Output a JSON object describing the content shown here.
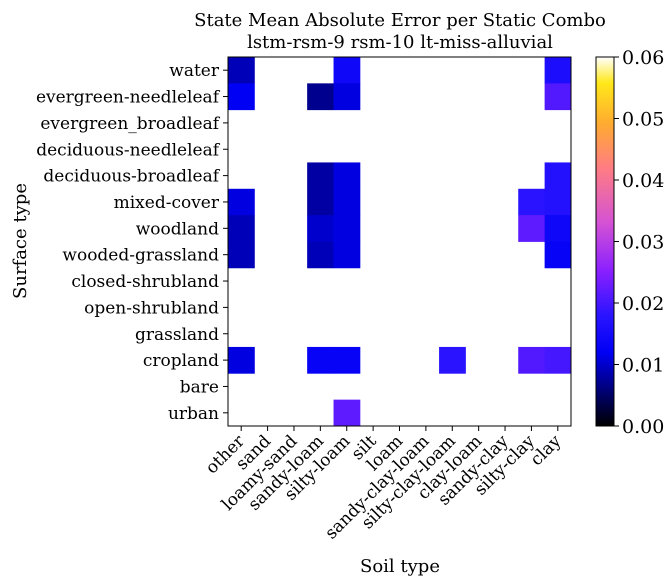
{
  "chart_data": {
    "type": "heatmap",
    "title": "State Mean Absolute Error per Static Combo",
    "subtitle": "lstm-rsm-9 rsm-10 lt-miss-alluvial",
    "xlabel": "Soil type",
    "ylabel": "Surface type",
    "x_categories": [
      "other",
      "sand",
      "loamy-sand",
      "sandy-loam",
      "silty-loam",
      "silt",
      "loam",
      "sandy-clay-loam",
      "silty-clay-loam",
      "clay-loam",
      "sandy-clay",
      "silty-clay",
      "clay"
    ],
    "y_categories": [
      "water",
      "evergreen-needleleaf",
      "evergreen_broadleaf",
      "deciduous-needleleaf",
      "deciduous-broadleaf",
      "mixed-cover",
      "woodland",
      "wooded-grassland",
      "closed-shrubland",
      "open-shrubland",
      "grassland",
      "cropland",
      "bare",
      "urban"
    ],
    "values": [
      [
        0.009,
        null,
        null,
        null,
        0.014,
        null,
        null,
        null,
        null,
        null,
        null,
        null,
        0.016
      ],
      [
        0.012,
        null,
        null,
        0.007,
        0.011,
        null,
        null,
        null,
        null,
        null,
        null,
        null,
        0.021
      ],
      [
        null,
        null,
        null,
        null,
        null,
        null,
        null,
        null,
        null,
        null,
        null,
        null,
        null
      ],
      [
        null,
        null,
        null,
        null,
        null,
        null,
        null,
        null,
        null,
        null,
        null,
        null,
        null
      ],
      [
        null,
        null,
        null,
        0.008,
        0.011,
        null,
        null,
        null,
        null,
        null,
        null,
        null,
        0.017
      ],
      [
        0.011,
        null,
        null,
        0.008,
        0.011,
        null,
        null,
        null,
        null,
        null,
        null,
        0.018,
        0.017
      ],
      [
        0.009,
        null,
        null,
        0.01,
        0.011,
        null,
        null,
        null,
        null,
        null,
        null,
        0.022,
        0.014
      ],
      [
        0.009,
        null,
        null,
        0.009,
        0.011,
        null,
        null,
        null,
        null,
        null,
        null,
        null,
        0.013
      ],
      [
        null,
        null,
        null,
        null,
        null,
        null,
        null,
        null,
        null,
        null,
        null,
        null,
        null
      ],
      [
        null,
        null,
        null,
        null,
        null,
        null,
        null,
        null,
        null,
        null,
        null,
        null,
        null
      ],
      [
        null,
        null,
        null,
        null,
        null,
        null,
        null,
        null,
        null,
        null,
        null,
        null,
        null
      ],
      [
        0.011,
        null,
        null,
        0.013,
        0.013,
        null,
        null,
        null,
        0.018,
        null,
        null,
        0.021,
        0.02
      ],
      [
        null,
        null,
        null,
        null,
        null,
        null,
        null,
        null,
        null,
        null,
        null,
        null,
        null
      ],
      [
        null,
        null,
        null,
        null,
        0.022,
        null,
        null,
        null,
        null,
        null,
        null,
        null,
        null
      ]
    ],
    "colormap": "gnuplot2",
    "colorbar": {
      "range": [
        0.0,
        0.06
      ],
      "ticks": [
        0.0,
        0.01,
        0.02,
        0.03,
        0.04,
        0.05,
        0.06
      ],
      "tick_labels": [
        "0.00",
        "0.01",
        "0.02",
        "0.03",
        "0.04",
        "0.05",
        "0.06"
      ]
    },
    "missing_color": "#ffffff"
  }
}
